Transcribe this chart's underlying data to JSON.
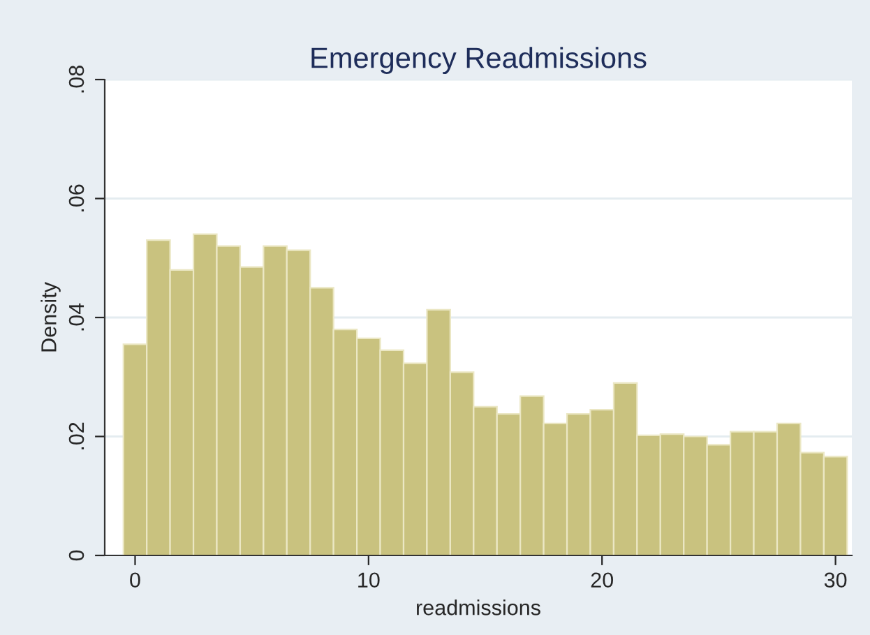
{
  "chart_data": {
    "type": "histogram",
    "title": "Emergency Readmissions",
    "xlabel": "readmissions",
    "ylabel": "Density",
    "bins": [
      -0.5,
      0.5,
      1.5,
      2.5,
      3.5,
      4.5,
      5.5,
      6.5,
      7.5,
      8.5,
      9.5,
      10.5,
      11.5,
      12.5,
      13.5,
      14.5,
      15.5,
      16.5,
      17.5,
      18.5,
      19.5,
      20.5,
      21.5,
      22.5,
      23.5,
      24.5,
      25.5,
      26.5,
      27.5,
      28.5,
      29.5,
      30.5
    ],
    "values": [
      0.0355,
      0.053,
      0.048,
      0.054,
      0.052,
      0.0485,
      0.052,
      0.0513,
      0.045,
      0.038,
      0.0365,
      0.0345,
      0.0323,
      0.0413,
      0.0308,
      0.025,
      0.0238,
      0.0268,
      0.0222,
      0.0238,
      0.0245,
      0.029,
      0.0202,
      0.0204,
      0.02,
      0.0186,
      0.0208,
      0.0208,
      0.0222,
      0.0173,
      0.0166
    ],
    "color": "#c9c27f",
    "xlim": [
      -1.3,
      30.7
    ],
    "xticks": [
      0,
      10,
      20,
      30
    ],
    "ylim": [
      0,
      0.08
    ],
    "yticks": [
      {
        "value": 0,
        "label": "0"
      },
      {
        "value": 0.02,
        "label": ".02"
      },
      {
        "value": 0.04,
        "label": ".04"
      },
      {
        "value": 0.06,
        "label": ".06"
      },
      {
        "value": 0.08,
        "label": ".08"
      }
    ],
    "grid": "y"
  }
}
